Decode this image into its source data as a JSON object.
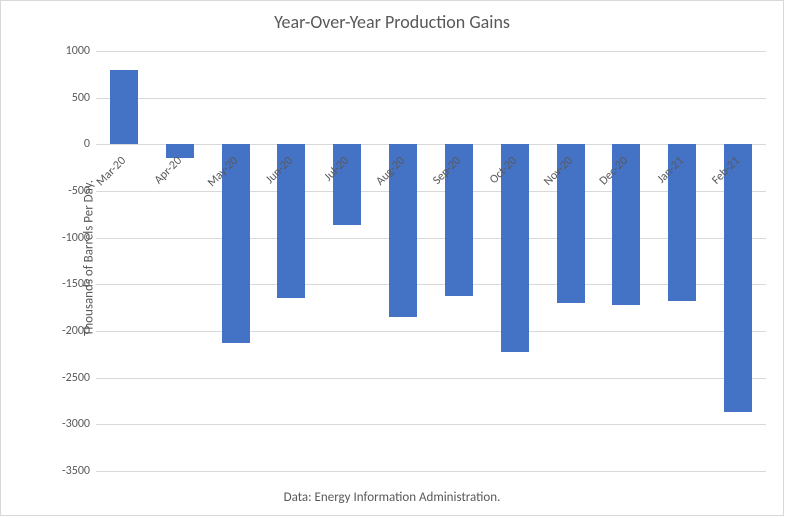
{
  "chart": {
    "type": "bar",
    "title": "Year-Over-Year Production Gains",
    "title_fontsize": 18,
    "ylabel": "Thousands of Barrels Per Day.",
    "label_fontsize": 13,
    "footer": "Data: Energy Information Administration.",
    "categories": [
      "Mar-20",
      "Apr-20",
      "May-20",
      "Jun-20",
      "Jul-20",
      "Aug-20",
      "Sep-20",
      "Oct-20",
      "Nov-20",
      "Dec-20",
      "Jan-21",
      "Feb-21"
    ],
    "values": [
      800,
      -150,
      -2130,
      -1650,
      -860,
      -1850,
      -1630,
      -2230,
      -1700,
      -1720,
      -1680,
      -2870
    ],
    "ylim": [
      -3500,
      1000
    ],
    "ytick_step": 500,
    "bar_color": "#4472c4",
    "grid_color": "#d9d9d9",
    "background_color": "#ffffff",
    "text_color": "#595959",
    "bar_width": 0.5,
    "cat_label_rotation": -45,
    "cat_label_fontsize": 12,
    "tick_label_fontsize": 12
  }
}
